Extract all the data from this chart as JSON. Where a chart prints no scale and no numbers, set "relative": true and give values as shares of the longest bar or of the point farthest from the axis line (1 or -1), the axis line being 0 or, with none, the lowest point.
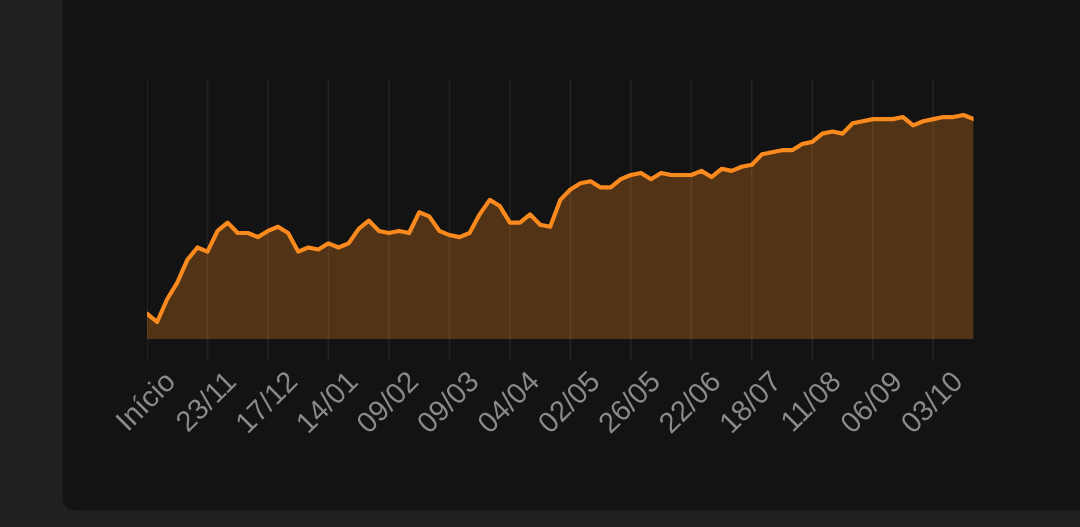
{
  "chart_data": {
    "type": "area",
    "relative": true,
    "categories": [
      "Início",
      null,
      null,
      null,
      null,
      null,
      "23/11",
      null,
      null,
      null,
      null,
      null,
      "17/12",
      null,
      null,
      null,
      null,
      null,
      "14/01",
      null,
      null,
      null,
      null,
      null,
      "09/02",
      null,
      null,
      null,
      null,
      null,
      "09/03",
      null,
      null,
      null,
      null,
      null,
      "04/04",
      null,
      null,
      null,
      null,
      null,
      "02/05",
      null,
      null,
      null,
      null,
      null,
      "26/05",
      null,
      null,
      null,
      null,
      null,
      "22/06",
      null,
      null,
      null,
      null,
      null,
      "18/07",
      null,
      null,
      null,
      null,
      null,
      "11/08",
      null,
      null,
      null,
      null,
      null,
      "06/09",
      null,
      null,
      null,
      null,
      null,
      "03/10",
      null,
      null,
      null,
      null
    ],
    "series": [
      {
        "color": "#fb8a1e",
        "values": [
          0.04,
          0,
          0.11,
          0.19,
          0.3,
          0.36,
          0.34,
          0.44,
          0.48,
          0.43,
          0.43,
          0.41,
          0.44,
          0.46,
          0.43,
          0.34,
          0.36,
          0.35,
          0.38,
          0.36,
          0.38,
          0.45,
          0.49,
          0.44,
          0.43,
          0.44,
          0.43,
          0.53,
          0.51,
          0.44,
          0.42,
          0.41,
          0.43,
          0.52,
          0.59,
          0.56,
          0.48,
          0.48,
          0.52,
          0.47,
          0.46,
          0.59,
          0.64,
          0.67,
          0.68,
          0.65,
          0.65,
          0.69,
          0.71,
          0.72,
          0.69,
          0.72,
          0.71,
          0.71,
          0.71,
          0.73,
          0.7,
          0.74,
          0.73,
          0.75,
          0.76,
          0.81,
          0.82,
          0.83,
          0.83,
          0.86,
          0.87,
          0.91,
          0.92,
          0.91,
          0.96,
          0.97,
          0.98,
          0.98,
          0.98,
          0.99,
          0.95,
          0.97,
          0.98,
          0.99,
          0.99,
          1,
          0.98
        ]
      }
    ],
    "grid": "x"
  }
}
